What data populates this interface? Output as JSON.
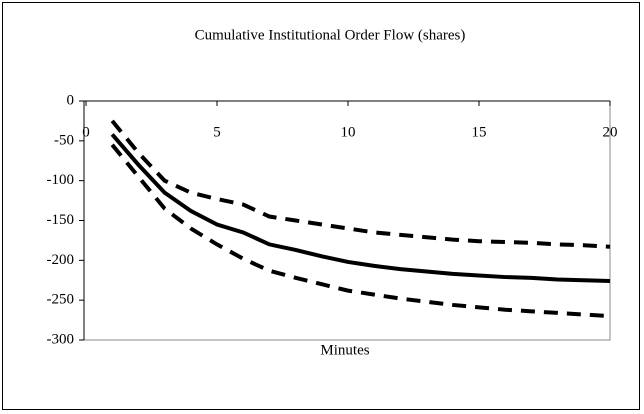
{
  "chart_data": {
    "type": "line",
    "title": "Cumulative Institutional Order Flow (shares)",
    "x_label": "Minutes",
    "x": [
      1,
      2,
      3,
      4,
      5,
      6,
      7,
      8,
      9,
      10,
      11,
      12,
      13,
      14,
      15,
      16,
      17,
      18,
      19,
      20
    ],
    "series": [
      {
        "color": "#000000",
        "dash": false,
        "values": [
          -42,
          -80,
          -115,
          -138,
          -155,
          -165,
          -180,
          -187,
          -195,
          -202,
          -207,
          -211,
          -214,
          -217,
          -219,
          -221,
          -222,
          -224,
          -225,
          -226
        ]
      },
      {
        "color": "#000000",
        "dash": true,
        "values": [
          -25,
          -65,
          -100,
          -115,
          -123,
          -130,
          -145,
          -150,
          -155,
          -160,
          -165,
          -168,
          -171,
          -174,
          -176,
          -177,
          -178,
          -180,
          -181,
          -183
        ]
      },
      {
        "color": "#000000",
        "dash": true,
        "values": [
          -55,
          -95,
          -135,
          -160,
          -180,
          -198,
          -213,
          -222,
          -230,
          -238,
          -243,
          -248,
          -252,
          -256,
          -259,
          -262,
          -264,
          -266,
          -268,
          -270
        ]
      }
    ],
    "xlim": [
      0,
      20
    ],
    "xticks": [
      0,
      5,
      10,
      15,
      20
    ],
    "ylim": [
      -300,
      0
    ],
    "yticks": [
      0,
      -50,
      -100,
      -150,
      -200,
      -250,
      -300
    ],
    "grid": false
  }
}
